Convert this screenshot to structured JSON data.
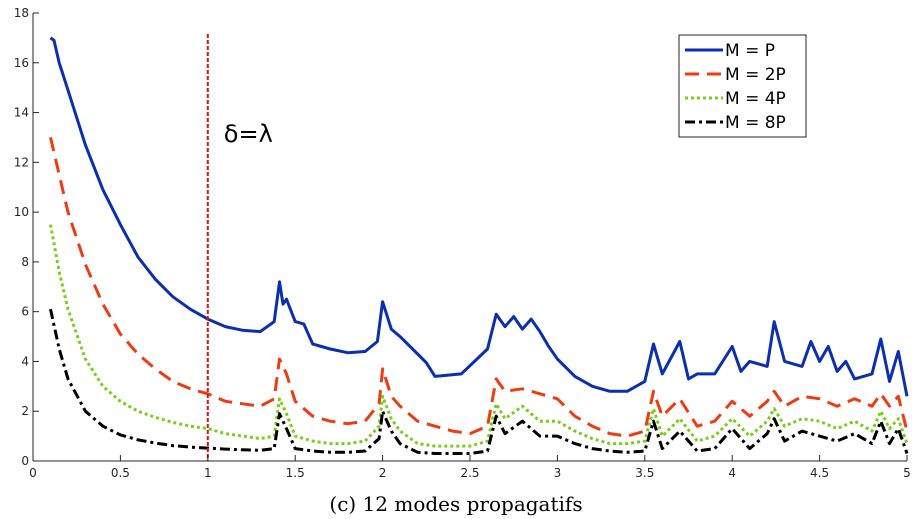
{
  "chart_data": {
    "type": "line",
    "title": "",
    "xlabel": "",
    "ylabel": "",
    "xlim": [
      0,
      5
    ],
    "ylim": [
      0,
      18
    ],
    "x_ticks": [
      0,
      0.5,
      1,
      1.5,
      2,
      2.5,
      3,
      3.5,
      4,
      4.5,
      5
    ],
    "x_tick_labels": [
      "0",
      "0.5",
      "1",
      "1.5",
      "2",
      "2.5",
      "3",
      "3.5",
      "4",
      "4.5",
      "5"
    ],
    "y_ticks": [
      0,
      2,
      4,
      6,
      8,
      10,
      12,
      14,
      16,
      18
    ],
    "y_tick_labels": [
      "0",
      "2",
      "4",
      "6",
      "8",
      "10",
      "12",
      "14",
      "16",
      "18"
    ],
    "grid": false,
    "legend_position": "top-right",
    "series": [
      {
        "name": "M = P",
        "color": "#0a2fb0",
        "style": "solid",
        "x": [
          0.1,
          0.12,
          0.15,
          0.2,
          0.3,
          0.4,
          0.5,
          0.6,
          0.7,
          0.8,
          0.9,
          1.0,
          1.1,
          1.2,
          1.3,
          1.38,
          1.41,
          1.43,
          1.45,
          1.5,
          1.55,
          1.6,
          1.7,
          1.8,
          1.9,
          1.97,
          2.0,
          2.05,
          2.1,
          2.2,
          2.25,
          2.3,
          2.45,
          2.6,
          2.65,
          2.7,
          2.75,
          2.8,
          2.85,
          2.9,
          2.95,
          3.0,
          3.1,
          3.2,
          3.3,
          3.4,
          3.5,
          3.55,
          3.6,
          3.7,
          3.75,
          3.8,
          3.9,
          4.0,
          4.05,
          4.1,
          4.2,
          4.24,
          4.3,
          4.4,
          4.45,
          4.5,
          4.55,
          4.6,
          4.65,
          4.7,
          4.8,
          4.85,
          4.9,
          4.95,
          5.0
        ],
        "y": [
          17.0,
          16.9,
          16.0,
          14.9,
          12.7,
          10.9,
          9.5,
          8.2,
          7.3,
          6.6,
          6.1,
          5.7,
          5.4,
          5.25,
          5.2,
          5.6,
          7.2,
          6.3,
          6.5,
          5.6,
          5.5,
          4.7,
          4.5,
          4.35,
          4.4,
          4.8,
          6.4,
          5.3,
          5.0,
          4.3,
          3.95,
          3.4,
          3.5,
          4.5,
          5.9,
          5.4,
          5.8,
          5.3,
          5.7,
          5.2,
          4.6,
          4.1,
          3.4,
          3.0,
          2.8,
          2.8,
          3.2,
          4.7,
          3.5,
          4.8,
          3.3,
          3.5,
          3.5,
          4.6,
          3.6,
          4.0,
          3.8,
          5.6,
          4.0,
          3.8,
          4.8,
          4.0,
          4.6,
          3.6,
          4.0,
          3.3,
          3.5,
          4.9,
          3.2,
          4.4,
          2.6
        ]
      },
      {
        "name": "M = 2P",
        "color": "#ef3b12",
        "style": "dashed",
        "x": [
          0.1,
          0.15,
          0.2,
          0.3,
          0.4,
          0.5,
          0.6,
          0.7,
          0.8,
          0.9,
          1.0,
          1.1,
          1.2,
          1.3,
          1.38,
          1.41,
          1.45,
          1.5,
          1.6,
          1.7,
          1.8,
          1.9,
          1.98,
          2.0,
          2.05,
          2.1,
          2.2,
          2.3,
          2.4,
          2.5,
          2.6,
          2.65,
          2.7,
          2.8,
          2.9,
          3.0,
          3.1,
          3.2,
          3.3,
          3.4,
          3.5,
          3.55,
          3.6,
          3.7,
          3.8,
          3.9,
          4.0,
          4.1,
          4.2,
          4.24,
          4.3,
          4.4,
          4.5,
          4.6,
          4.7,
          4.8,
          4.85,
          4.9,
          4.95,
          5.0
        ],
        "y": [
          13.0,
          11.5,
          10.0,
          7.9,
          6.3,
          5.1,
          4.3,
          3.7,
          3.2,
          2.9,
          2.7,
          2.4,
          2.3,
          2.2,
          2.5,
          4.1,
          3.5,
          2.4,
          1.8,
          1.6,
          1.5,
          1.6,
          2.3,
          3.7,
          2.6,
          2.2,
          1.6,
          1.4,
          1.2,
          1.1,
          1.4,
          3.3,
          2.8,
          2.9,
          2.7,
          2.5,
          1.8,
          1.4,
          1.1,
          1.0,
          1.2,
          2.8,
          1.8,
          2.5,
          1.4,
          1.6,
          2.4,
          1.8,
          2.4,
          2.8,
          2.2,
          2.6,
          2.5,
          2.2,
          2.5,
          2.2,
          2.7,
          2.2,
          2.6,
          1.2
        ]
      },
      {
        "name": "M = 4P",
        "color": "#7ccd1a",
        "style": "dotted",
        "x": [
          0.1,
          0.15,
          0.2,
          0.3,
          0.4,
          0.5,
          0.6,
          0.7,
          0.8,
          0.9,
          1.0,
          1.1,
          1.2,
          1.3,
          1.38,
          1.41,
          1.45,
          1.5,
          1.6,
          1.7,
          1.8,
          1.9,
          1.98,
          2.0,
          2.05,
          2.1,
          2.2,
          2.3,
          2.4,
          2.5,
          2.6,
          2.65,
          2.7,
          2.8,
          2.9,
          3.0,
          3.1,
          3.2,
          3.3,
          3.4,
          3.5,
          3.55,
          3.6,
          3.7,
          3.8,
          3.9,
          4.0,
          4.1,
          4.2,
          4.24,
          4.3,
          4.4,
          4.5,
          4.6,
          4.7,
          4.8,
          4.85,
          4.9,
          4.95,
          5.0
        ],
        "y": [
          9.5,
          7.6,
          6.1,
          4.1,
          3.0,
          2.4,
          2.0,
          1.75,
          1.55,
          1.4,
          1.3,
          1.1,
          1.0,
          0.9,
          1.0,
          2.5,
          1.9,
          1.0,
          0.8,
          0.7,
          0.7,
          0.8,
          1.4,
          2.6,
          1.7,
          1.2,
          0.7,
          0.6,
          0.6,
          0.6,
          0.8,
          2.3,
          1.7,
          2.2,
          1.6,
          1.6,
          1.2,
          0.9,
          0.7,
          0.7,
          0.8,
          2.1,
          1.0,
          1.7,
          0.8,
          1.0,
          1.7,
          1.0,
          1.6,
          2.1,
          1.4,
          1.7,
          1.6,
          1.3,
          1.6,
          1.2,
          2.0,
          1.3,
          1.7,
          0.7
        ]
      },
      {
        "name": "M = 8P",
        "color": "#000000",
        "style": "dashdot",
        "x": [
          0.1,
          0.15,
          0.2,
          0.3,
          0.4,
          0.5,
          0.6,
          0.7,
          0.8,
          0.9,
          1.0,
          1.1,
          1.2,
          1.3,
          1.38,
          1.41,
          1.45,
          1.5,
          1.6,
          1.7,
          1.8,
          1.9,
          1.98,
          2.0,
          2.05,
          2.1,
          2.2,
          2.3,
          2.4,
          2.5,
          2.6,
          2.65,
          2.7,
          2.8,
          2.9,
          3.0,
          3.1,
          3.2,
          3.3,
          3.4,
          3.5,
          3.55,
          3.6,
          3.7,
          3.8,
          3.9,
          4.0,
          4.1,
          4.2,
          4.24,
          4.3,
          4.4,
          4.5,
          4.6,
          4.7,
          4.8,
          4.85,
          4.9,
          4.95,
          5.0
        ],
        "y": [
          6.1,
          4.5,
          3.3,
          2.0,
          1.4,
          1.05,
          0.85,
          0.72,
          0.62,
          0.56,
          0.52,
          0.48,
          0.45,
          0.43,
          0.5,
          1.9,
          1.3,
          0.5,
          0.4,
          0.35,
          0.35,
          0.4,
          0.9,
          2.0,
          1.2,
          0.7,
          0.35,
          0.3,
          0.3,
          0.3,
          0.4,
          1.8,
          1.1,
          1.6,
          1.0,
          1.0,
          0.7,
          0.5,
          0.4,
          0.35,
          0.4,
          1.6,
          0.5,
          1.2,
          0.4,
          0.5,
          1.3,
          0.5,
          1.1,
          1.7,
          0.8,
          1.2,
          1.0,
          0.8,
          1.1,
          0.7,
          1.6,
          0.7,
          1.3,
          0.3
        ]
      }
    ],
    "annotations": [
      {
        "text": "δ=λ",
        "x_line": 1,
        "line_color": "#e01010"
      }
    ]
  },
  "caption": "(c) 12 modes propagatifs"
}
